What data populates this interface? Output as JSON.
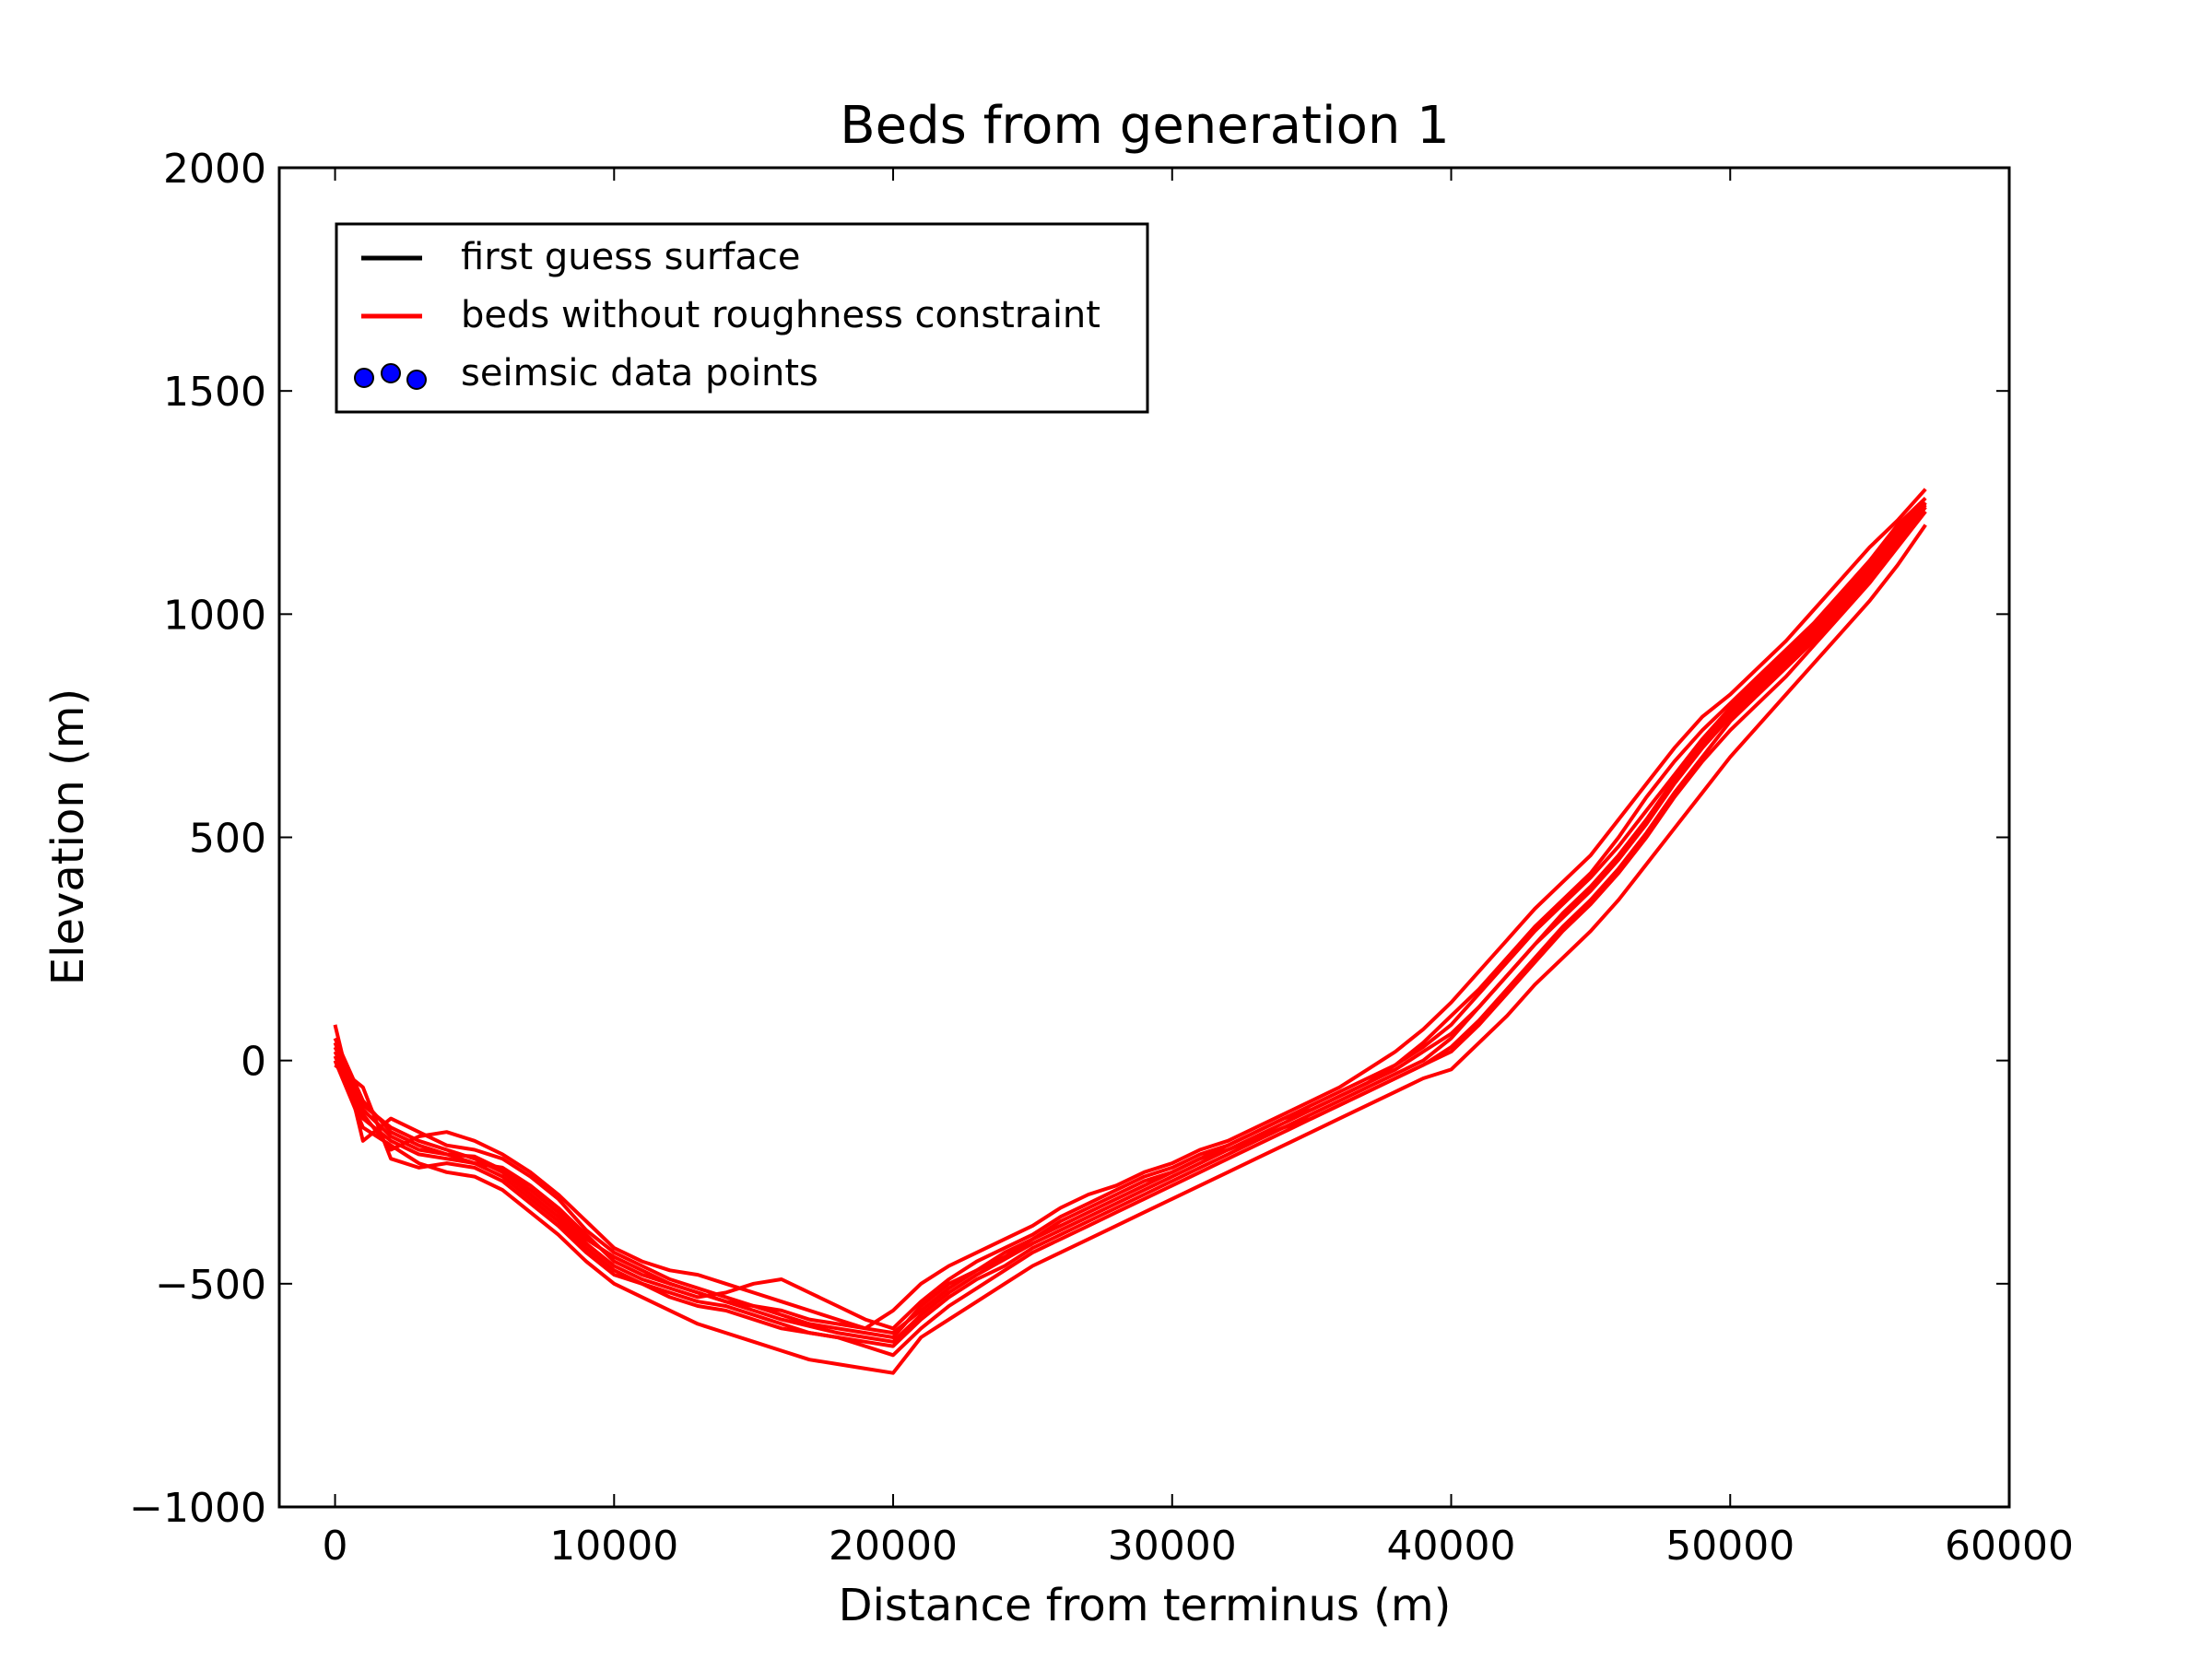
{
  "chart_data": {
    "type": "line",
    "title": "Beds from generation 1",
    "xlabel": "Distance from terminus (m)",
    "ylabel": "Elevation (m)",
    "xlim": [
      -2000,
      60000
    ],
    "ylim": [
      -1000,
      2000
    ],
    "grid": false,
    "xticks": [
      0,
      10000,
      20000,
      30000,
      40000,
      50000,
      60000
    ],
    "yticks": [
      -1000,
      -500,
      0,
      500,
      1000,
      1500,
      2000
    ],
    "xtick_labels": [
      "0",
      "10000",
      "20000",
      "30000",
      "40000",
      "50000",
      "60000"
    ],
    "ytick_labels": [
      "−1000",
      "−500",
      "0",
      "500",
      "1000",
      "1500",
      "2000"
    ],
    "legend": {
      "position": "upper-left",
      "entries": [
        {
          "label": "first guess surface",
          "color": "#000000",
          "marker": "line"
        },
        {
          "label": "beds without roughness constraint",
          "color": "#ff0000",
          "marker": "line"
        },
        {
          "label": "seimsic data points",
          "color": "#0000ff",
          "marker": "scatter"
        }
      ]
    },
    "colors": {
      "beds": "#ff0000",
      "first_guess": "#000000",
      "seismic": "#0000ff"
    },
    "x": [
      0,
      1000,
      2000,
      3000,
      4000,
      5000,
      6000,
      7000,
      8000,
      9000,
      10000,
      11000,
      12000,
      13000,
      14000,
      15000,
      16000,
      17000,
      18000,
      19000,
      20000,
      21000,
      22000,
      23000,
      24000,
      25000,
      26000,
      27000,
      28000,
      29000,
      30000,
      31000,
      32000,
      33000,
      34000,
      35000,
      36000,
      37000,
      38000,
      39000,
      40000,
      41000,
      42000,
      43000,
      44000,
      45000,
      46000,
      47000,
      48000,
      49000,
      50000,
      51000,
      52000,
      53000,
      54000,
      55000,
      56000,
      57000
    ],
    "series": [
      {
        "values": [
          20,
          -110,
          -170,
          -200,
          -210,
          -215,
          -245,
          -290,
          -340,
          -400,
          -440,
          -470,
          -500,
          -520,
          -540,
          -560,
          -580,
          -595,
          -610,
          -620,
          -630,
          -570,
          -520,
          -480,
          -445,
          -410,
          -380,
          -350,
          -320,
          -290,
          -260,
          -230,
          -200,
          -175,
          -150,
          -120,
          -90,
          -60,
          -30,
          0,
          50,
          120,
          190,
          260,
          320,
          380,
          450,
          530,
          620,
          700,
          770,
          830,
          890,
          950,
          1020,
          1090,
          1170,
          1250
        ]
      },
      {
        "values": [
          80,
          -180,
          -130,
          -160,
          -190,
          -200,
          -220,
          -260,
          -310,
          -380,
          -430,
          -460,
          -490,
          -510,
          -530,
          -550,
          -570,
          -590,
          -600,
          -610,
          -620,
          -550,
          -500,
          -470,
          -440,
          -400,
          -360,
          -330,
          -300,
          -270,
          -250,
          -220,
          -200,
          -170,
          -140,
          -110,
          -80,
          -50,
          -10,
          40,
          100,
          160,
          230,
          300,
          360,
          420,
          500,
          590,
          670,
          740,
          800,
          860,
          920,
          980,
          1050,
          1120,
          1200,
          1260
        ]
      },
      {
        "values": [
          -10,
          -60,
          -220,
          -240,
          -230,
          -240,
          -270,
          -320,
          -370,
          -430,
          -480,
          -500,
          -520,
          -540,
          -550,
          -570,
          -590,
          -610,
          -620,
          -640,
          -660,
          -600,
          -550,
          -510,
          -470,
          -430,
          -400,
          -370,
          -340,
          -310,
          -280,
          -250,
          -220,
          -190,
          -160,
          -130,
          -100,
          -70,
          -40,
          -10,
          20,
          80,
          150,
          220,
          290,
          350,
          420,
          500,
          590,
          670,
          740,
          800,
          860,
          930,
          1000,
          1070,
          1150,
          1230
        ]
      },
      {
        "values": [
          40,
          -120,
          -200,
          -170,
          -160,
          -180,
          -210,
          -250,
          -300,
          -360,
          -420,
          -450,
          -470,
          -480,
          -500,
          -520,
          -540,
          -560,
          -580,
          -600,
          -560,
          -500,
          -460,
          -430,
          -400,
          -370,
          -330,
          -300,
          -280,
          -250,
          -230,
          -200,
          -180,
          -150,
          -120,
          -90,
          -60,
          -20,
          20,
          70,
          130,
          200,
          270,
          340,
          400,
          460,
          540,
          620,
          700,
          770,
          820,
          880,
          940,
          1010,
          1080,
          1150,
          1210,
          1280
        ]
      },
      {
        "values": [
          0,
          -150,
          -190,
          -230,
          -250,
          -260,
          -290,
          -340,
          -390,
          -450,
          -500,
          -530,
          -560,
          -590,
          -610,
          -630,
          -650,
          -670,
          -680,
          -690,
          -700,
          -620,
          -580,
          -540,
          -500,
          -460,
          -430,
          -400,
          -370,
          -340,
          -310,
          -280,
          -250,
          -220,
          -190,
          -160,
          -130,
          -100,
          -70,
          -40,
          -20,
          40,
          100,
          170,
          230,
          290,
          360,
          440,
          520,
          600,
          680,
          750,
          820,
          890,
          960,
          1030,
          1110,
          1200
        ]
      },
      {
        "values": [
          30,
          -100,
          -150,
          -180,
          -200,
          -220,
          -250,
          -300,
          -350,
          -410,
          -460,
          -490,
          -510,
          -530,
          -520,
          -500,
          -490,
          -520,
          -550,
          -580,
          -600,
          -540,
          -490,
          -450,
          -420,
          -390,
          -350,
          -320,
          -290,
          -260,
          -240,
          -210,
          -190,
          -160,
          -130,
          -100,
          -70,
          -40,
          -10,
          30,
          80,
          150,
          220,
          290,
          350,
          410,
          480,
          560,
          640,
          720,
          790,
          850,
          910,
          970,
          1040,
          1110,
          1190,
          1250
        ]
      },
      {
        "values": [
          10,
          -130,
          -180,
          -210,
          -220,
          -230,
          -260,
          -310,
          -360,
          -420,
          -470,
          -500,
          -530,
          -550,
          -560,
          -580,
          -600,
          -610,
          -620,
          -630,
          -640,
          -580,
          -530,
          -490,
          -460,
          -420,
          -390,
          -360,
          -330,
          -300,
          -270,
          -240,
          -210,
          -180,
          -150,
          -130,
          -100,
          -70,
          -40,
          -10,
          30,
          90,
          160,
          230,
          300,
          360,
          430,
          510,
          600,
          680,
          760,
          820,
          880,
          940,
          1010,
          1080,
          1160,
          1240
        ]
      },
      {
        "values": [
          50,
          -90,
          -160,
          -190,
          -210,
          -230,
          -240,
          -280,
          -330,
          -390,
          -450,
          -480,
          -500,
          -520,
          -540,
          -550,
          -560,
          -580,
          -590,
          -600,
          -610,
          -560,
          -510,
          -470,
          -430,
          -400,
          -370,
          -340,
          -310,
          -280,
          -250,
          -220,
          -190,
          -160,
          -130,
          -110,
          -80,
          -50,
          -20,
          20,
          60,
          120,
          190,
          260,
          330,
          390,
          460,
          540,
          630,
          710,
          780,
          840,
          900,
          960,
          1030,
          1100,
          1180,
          1245
        ]
      }
    ]
  }
}
